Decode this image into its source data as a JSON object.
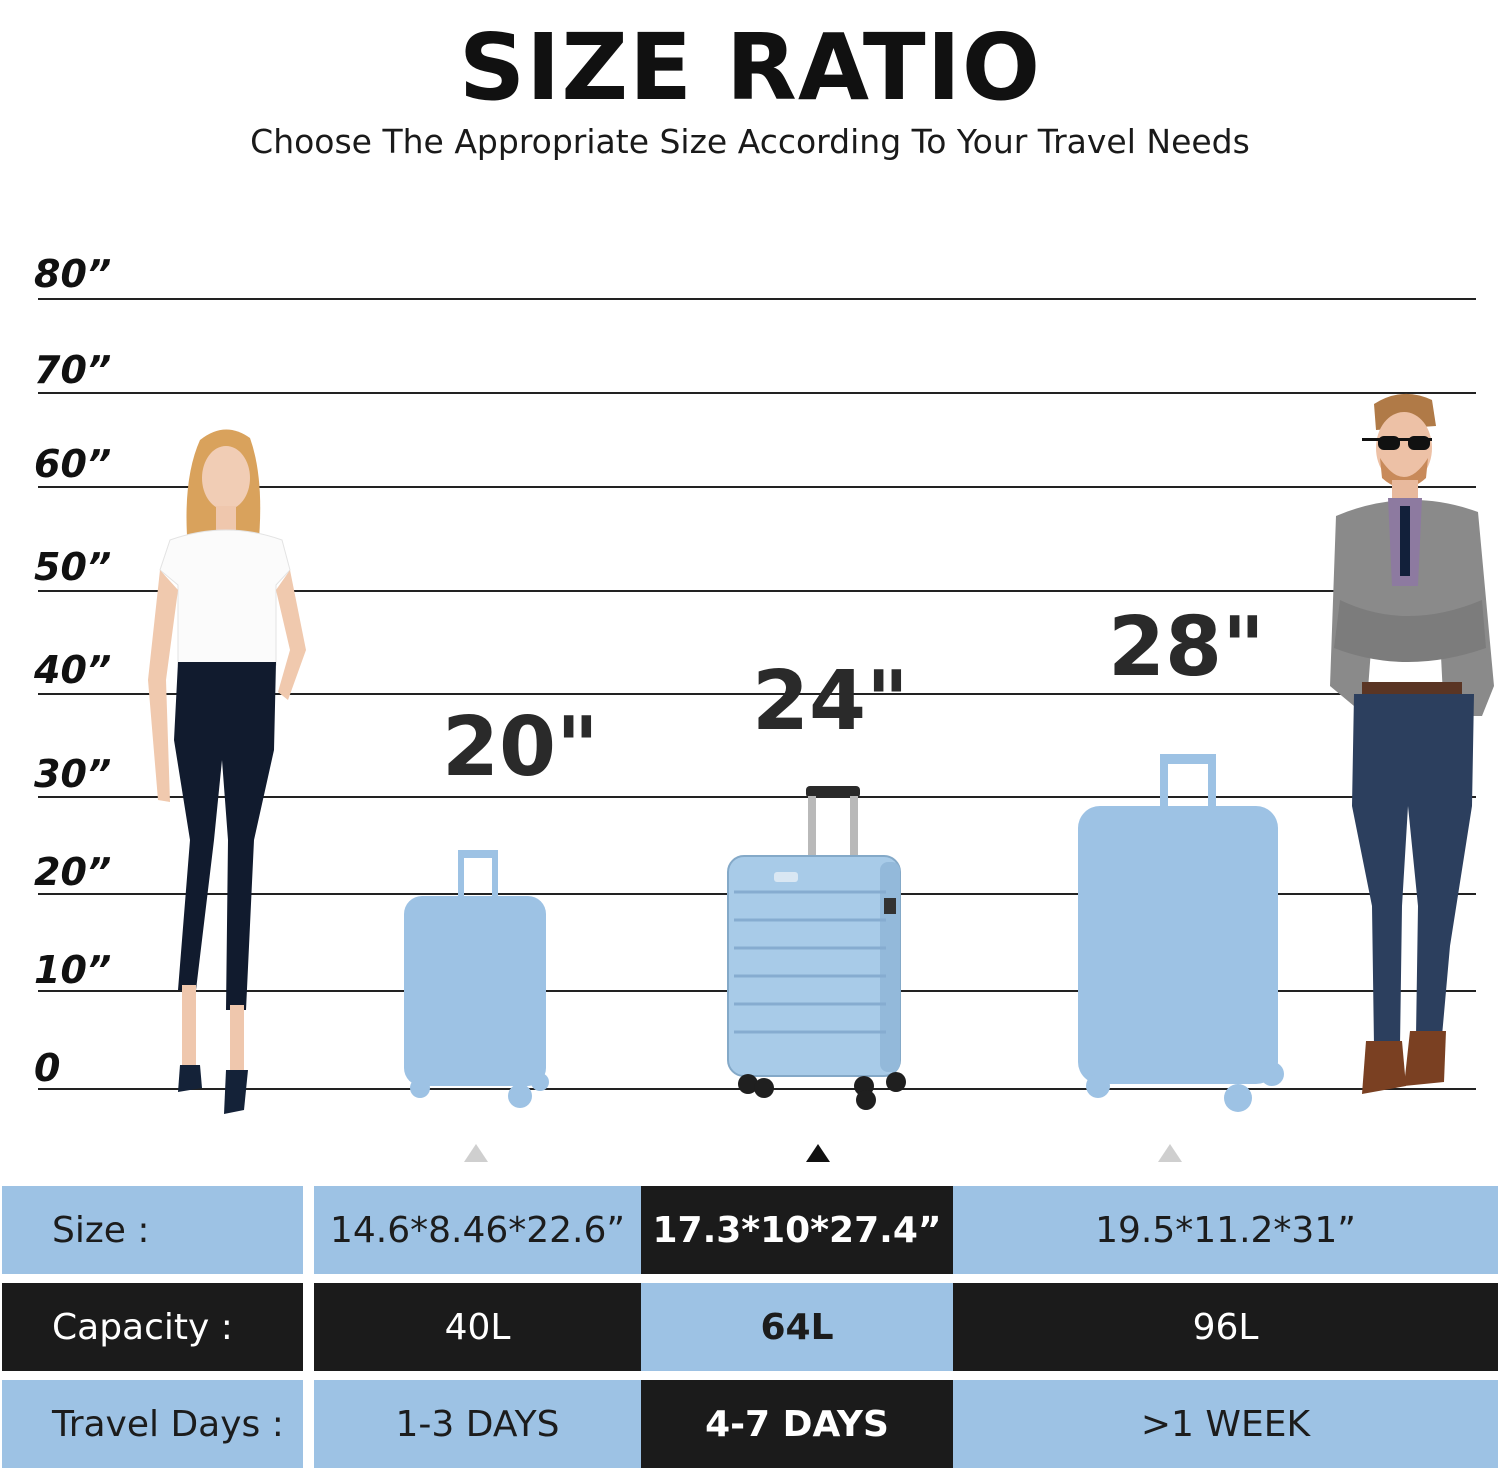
{
  "header": {
    "title": "SIZE RATIO",
    "subtitle": "Choose The Appropriate Size According To Your Travel Needs"
  },
  "scale": {
    "labels": [
      "80”",
      "70”",
      "60”",
      "50”",
      "40”",
      "30”",
      "20”",
      "10”",
      "0"
    ]
  },
  "luggage": [
    {
      "size_label": "20\"",
      "highlighted": false,
      "color": "#9dc2e4"
    },
    {
      "size_label": "24\"",
      "highlighted": true,
      "color": "#a8cbe8"
    },
    {
      "size_label": "28\"",
      "highlighted": false,
      "color": "#9dc2e4"
    }
  ],
  "table": {
    "rows": [
      {
        "label": "Size :",
        "values": [
          "14.6*8.46*22.6”",
          "17.3*10*27.4”",
          "19.5*11.2*31”"
        ]
      },
      {
        "label": "Capacity :",
        "values": [
          "40L",
          "64L",
          "96L"
        ]
      },
      {
        "label": "Travel Days :",
        "values": [
          "1-3 DAYS",
          "4-7 DAYS",
          ">1 WEEK"
        ]
      }
    ]
  },
  "colors": {
    "accent_blue": "#9dc2e4",
    "dark": "#1b1b1b"
  }
}
